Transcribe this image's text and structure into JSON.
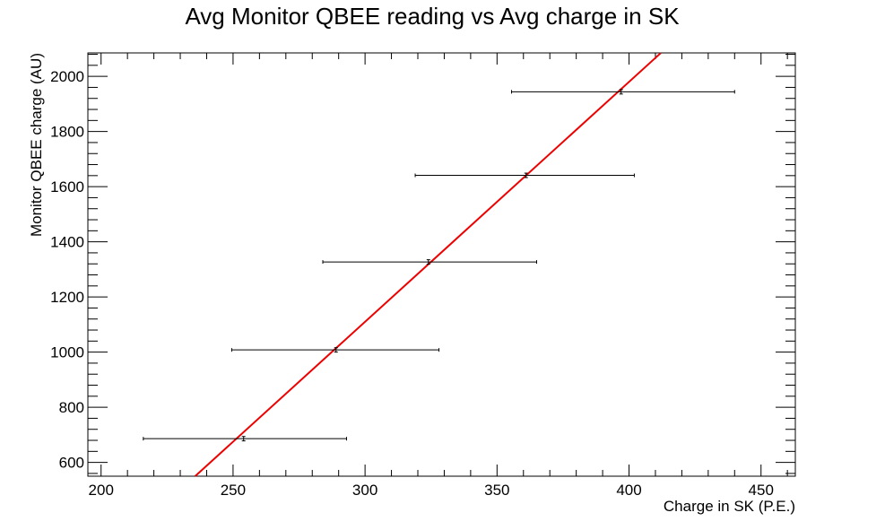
{
  "chart_data": {
    "type": "scatter",
    "title": "Avg Monitor QBEE reading vs Avg charge in SK",
    "xlabel": "Charge in SK (P.E.)",
    "ylabel": "Monitor QBEE charge (AU)",
    "xlim": [
      195,
      463
    ],
    "ylim": [
      550,
      2085
    ],
    "xticks": [
      200,
      250,
      300,
      350,
      400,
      450
    ],
    "xtick_labels": [
      "200",
      "250",
      "300",
      "350",
      "400",
      "450"
    ],
    "yticks": [
      600,
      800,
      1000,
      1200,
      1400,
      1600,
      1800,
      2000
    ],
    "ytick_labels": [
      "600",
      "800",
      "1000",
      "1200",
      "1400",
      "1600",
      "1800",
      "2000"
    ],
    "grid": false,
    "series": [
      {
        "points": [
          {
            "x": 254,
            "y": 686,
            "xerr_low": 216,
            "xerr_high": 293,
            "yerr": 8
          },
          {
            "x": 289,
            "y": 1008,
            "xerr_low": 249.5,
            "xerr_high": 328,
            "yerr": 8
          },
          {
            "x": 324,
            "y": 1327,
            "xerr_low": 284,
            "xerr_high": 365,
            "yerr": 8
          },
          {
            "x": 361,
            "y": 1641,
            "xerr_low": 319,
            "xerr_high": 402,
            "yerr": 8
          },
          {
            "x": 397,
            "y": 1944,
            "xerr_low": 355.5,
            "xerr_high": 440,
            "yerr": 8
          }
        ]
      }
    ],
    "fit_line": {
      "color": "#ee0000",
      "x_start": 235,
      "x_end": 412,
      "slope": 8.7,
      "intercept": -1500
    }
  }
}
